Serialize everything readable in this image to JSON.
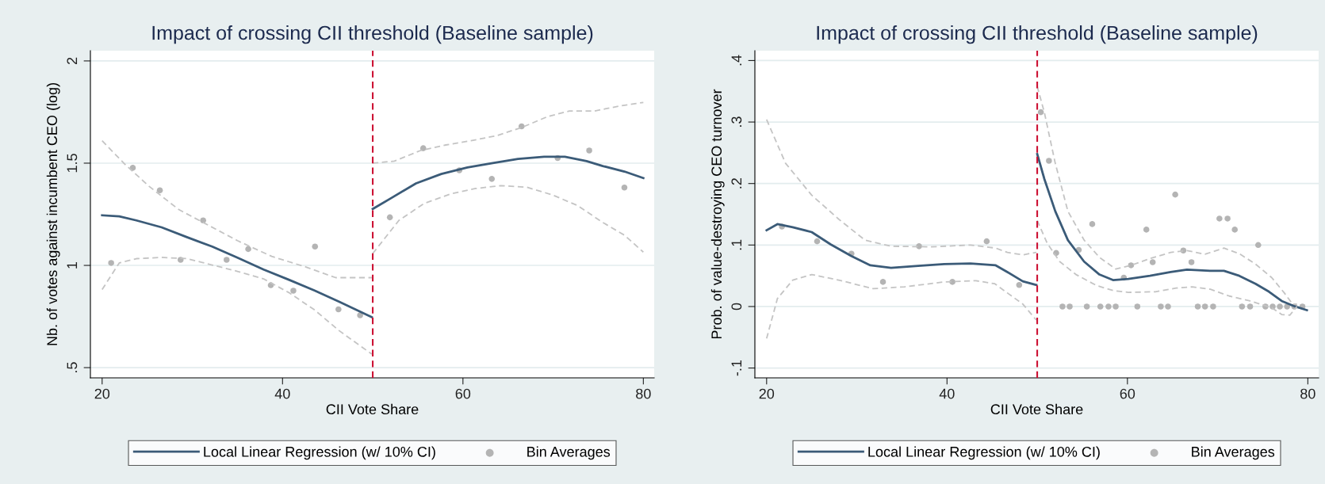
{
  "chart_data": [
    {
      "type": "line",
      "title": "Impact of crossing CII threshold (Baseline sample)",
      "xlabel": "CII Vote Share",
      "ylabel": "Nb. of votes against incumbent CEO (log)",
      "xlim": [
        18.7,
        81.2
      ],
      "xticks": [
        20,
        40,
        60,
        80
      ],
      "ylim": [
        0.45,
        2.05
      ],
      "yticks": [
        {
          "value": 0.5,
          "label": ".5"
        },
        1,
        1.5,
        2
      ],
      "grid": "y",
      "legend": "bottom",
      "ref_lines": [
        {
          "axis": "x",
          "value": 50,
          "color": "#cc1133",
          "line_style": "dashed"
        }
      ],
      "series": [
        {
          "name": "Local Linear Regression (w/ 10% CI)",
          "color": "#3b5b78",
          "x": [
            20,
            21.9,
            23.8,
            26.6,
            29.4,
            32.2,
            35,
            37.9,
            40.7,
            43.5,
            46.3,
            49.9
          ],
          "values": [
            1.245,
            1.24,
            1.22,
            1.186,
            1.138,
            1.092,
            1.038,
            0.98,
            0.93,
            0.878,
            0.822,
            0.747
          ]
        },
        {
          "color": "#3b5b78",
          "x": [
            50,
            52,
            54.8,
            57.6,
            60.5,
            63.3,
            66.1,
            69,
            71.3,
            73.7,
            75.5,
            77.9,
            80
          ],
          "values": [
            1.276,
            1.328,
            1.401,
            1.447,
            1.479,
            1.5,
            1.521,
            1.531,
            1.531,
            1.51,
            1.486,
            1.459,
            1.427
          ]
        },
        {
          "color": "#c4c4c4",
          "line_style": "dashed",
          "x": [
            20,
            22.4,
            25.2,
            28.5,
            31.8,
            35,
            38.8,
            42.6,
            45.9,
            49.9
          ],
          "values": [
            1.61,
            1.5,
            1.387,
            1.273,
            1.196,
            1.121,
            1.044,
            0.992,
            0.94,
            0.94
          ]
        },
        {
          "color": "#c4c4c4",
          "line_style": "dashed",
          "x": [
            20,
            21.9,
            23.8,
            26.6,
            29.4,
            32.2,
            35,
            37.9,
            40.7,
            43.5,
            46.3,
            49.9
          ],
          "values": [
            0.882,
            1.012,
            1.033,
            1.039,
            1.033,
            1.002,
            0.971,
            0.934,
            0.867,
            0.784,
            0.68,
            0.566
          ]
        },
        {
          "color": "#c4c4c4",
          "line_style": "dashed",
          "x": [
            50,
            52.4,
            55.3,
            58.1,
            60.9,
            63.8,
            66.6,
            69.4,
            71.8,
            74.6,
            77.4,
            80
          ],
          "values": [
            1.5,
            1.51,
            1.562,
            1.589,
            1.61,
            1.635,
            1.676,
            1.728,
            1.755,
            1.755,
            1.78,
            1.797
          ]
        },
        {
          "color": "#c4c4c4",
          "line_style": "dashed",
          "x": [
            50,
            52.9,
            55.7,
            58.6,
            61.4,
            64.2,
            67.1,
            69.9,
            72.7,
            75.5,
            77.9,
            80
          ],
          "values": [
            1.058,
            1.22,
            1.303,
            1.349,
            1.376,
            1.39,
            1.382,
            1.345,
            1.293,
            1.21,
            1.148,
            1.065
          ]
        },
        {
          "type": "scatter",
          "name": "Bin Averages",
          "color": "#b4b4b4",
          "marker": "circle",
          "x": [
            21.0,
            23.4,
            26.4,
            28.7,
            31.2,
            33.8,
            36.2,
            38.7,
            41.2,
            43.6,
            46.2,
            48.6,
            51.9,
            55.6,
            59.6,
            63.2,
            66.5,
            70.5,
            74.0,
            77.9
          ],
          "values": [
            1.012,
            1.477,
            1.367,
            1.027,
            1.22,
            1.027,
            1.08,
            0.903,
            0.876,
            1.092,
            0.785,
            0.756,
            1.235,
            1.573,
            1.465,
            1.423,
            1.68,
            1.525,
            1.562,
            1.381
          ]
        }
      ]
    },
    {
      "type": "line",
      "title": "Impact of crossing CII threshold (Baseline sample)",
      "xlabel": "CII Vote Share",
      "ylabel": "Prob. of value-destroying CEO turnover",
      "xlim": [
        18.7,
        81.2
      ],
      "xticks": [
        20,
        40,
        60,
        80
      ],
      "ylim": [
        -0.116,
        0.416
      ],
      "yticks": [
        {
          "value": -0.1,
          "label": "-.1"
        },
        0,
        {
          "value": 0.1,
          "label": ".1"
        },
        {
          "value": 0.2,
          "label": ".2"
        },
        {
          "value": 0.3,
          "label": ".3"
        },
        {
          "value": 0.4,
          "label": ".4"
        }
      ],
      "grid": "y",
      "legend": "bottom",
      "ref_lines": [
        {
          "axis": "x",
          "value": 50,
          "color": "#cc1133",
          "line_style": "dashed"
        }
      ],
      "series": [
        {
          "name": "Local Linear Regression (w/ 10% CI)",
          "color": "#3b5b78",
          "x": [
            20,
            21.2,
            22.9,
            25,
            27.1,
            29.4,
            31.5,
            33.8,
            36.8,
            39.7,
            42.6,
            45.4,
            46.7,
            48.4,
            49.9
          ],
          "values": [
            0.124,
            0.134,
            0.129,
            0.121,
            0.101,
            0.082,
            0.067,
            0.063,
            0.066,
            0.069,
            0.07,
            0.067,
            0.056,
            0.041,
            0.035
          ]
        },
        {
          "color": "#3b5b78",
          "x": [
            50,
            50.8,
            52,
            53.4,
            55.2,
            56.9,
            58.4,
            60.1,
            62.5,
            64.8,
            66.6,
            69.2,
            70.7,
            72.4,
            74.2,
            75.7,
            77.1,
            78.6,
            79.9
          ],
          "values": [
            0.248,
            0.207,
            0.155,
            0.108,
            0.073,
            0.052,
            0.043,
            0.045,
            0.05,
            0.056,
            0.06,
            0.058,
            0.058,
            0.05,
            0.037,
            0.024,
            0.009,
            0,
            -0.006
          ]
        },
        {
          "color": "#c4c4c4",
          "line_style": "dashed",
          "x": [
            20,
            22.1,
            25,
            28,
            30.9,
            33.8,
            38.2,
            42.6,
            45.4,
            46.7,
            48.4,
            49.9
          ],
          "values": [
            0.304,
            0.233,
            0.181,
            0.142,
            0.108,
            0.098,
            0.097,
            0.1,
            0.095,
            0.088,
            0.084,
            0.088
          ]
        },
        {
          "color": "#c4c4c4",
          "line_style": "dashed",
          "x": [
            20,
            21.2,
            22.9,
            25,
            28,
            31.8,
            35.3,
            39.7,
            43.2,
            45.3,
            46.7,
            48.4,
            49.9
          ],
          "values": [
            -0.052,
            0.013,
            0.043,
            0.052,
            0.043,
            0.029,
            0.032,
            0.04,
            0.042,
            0.037,
            0.022,
            0.004,
            -0.022
          ]
        },
        {
          "color": "#c4c4c4",
          "line_style": "dashed",
          "x": [
            50,
            50.8,
            52,
            53.4,
            55.2,
            56.9,
            58.7,
            60.4,
            62.5,
            64.8,
            66.6,
            68.6,
            70.7,
            72.4,
            74.2,
            76,
            77.4,
            78.3,
            78.8
          ],
          "values": [
            0.358,
            0.315,
            0.233,
            0.155,
            0.108,
            0.08,
            0.061,
            0.067,
            0.078,
            0.088,
            0.091,
            0.085,
            0.095,
            0.086,
            0.069,
            0.047,
            0.022,
            0.004,
            0.004
          ]
        },
        {
          "color": "#c4c4c4",
          "line_style": "dashed",
          "x": [
            50,
            51.1,
            52.5,
            54.3,
            56.6,
            58.4,
            60.1,
            63.1,
            65.4,
            67.2,
            69.2,
            71.3,
            73.6,
            76,
            77.1,
            78,
            78.8
          ],
          "values": [
            0.14,
            0.103,
            0.073,
            0.052,
            0.034,
            0.026,
            0.023,
            0.024,
            0.03,
            0.032,
            0.028,
            0.017,
            0.009,
            -0.002,
            -0.013,
            -0.014,
            0
          ]
        },
        {
          "type": "scatter",
          "name": "Bin Averages",
          "color": "#b4b4b4",
          "marker": "circle",
          "x": [
            21.7,
            25.6,
            29.4,
            32.9,
            36.9,
            40.6,
            44.4,
            48.0,
            50.4,
            51.3,
            52.1,
            52.8,
            53.6,
            54.6,
            55.5,
            56.1,
            57.0,
            57.9,
            58.7,
            59.6,
            60.4,
            61.1,
            62.1,
            62.8,
            63.7,
            64.5,
            65.3,
            66.2,
            67.1,
            67.8,
            68.6,
            69.5,
            70.2,
            71.1,
            71.9,
            72.7,
            73.6,
            74.5,
            75.3,
            76.1,
            76.9,
            77.7,
            78.5,
            79.4
          ],
          "values": [
            0.13,
            0.106,
            0.086,
            0.04,
            0.098,
            0.04,
            0.106,
            0.035,
            0.316,
            0.237,
            0.087,
            0,
            0,
            0.092,
            0,
            0.134,
            0,
            0,
            0,
            0.047,
            0.067,
            0,
            0.125,
            0.072,
            0,
            0,
            0.182,
            0.091,
            0.072,
            0,
            0,
            0,
            0.143,
            0.143,
            0.125,
            0,
            0,
            0.1,
            0,
            0,
            0,
            0,
            0,
            0
          ]
        }
      ]
    }
  ]
}
